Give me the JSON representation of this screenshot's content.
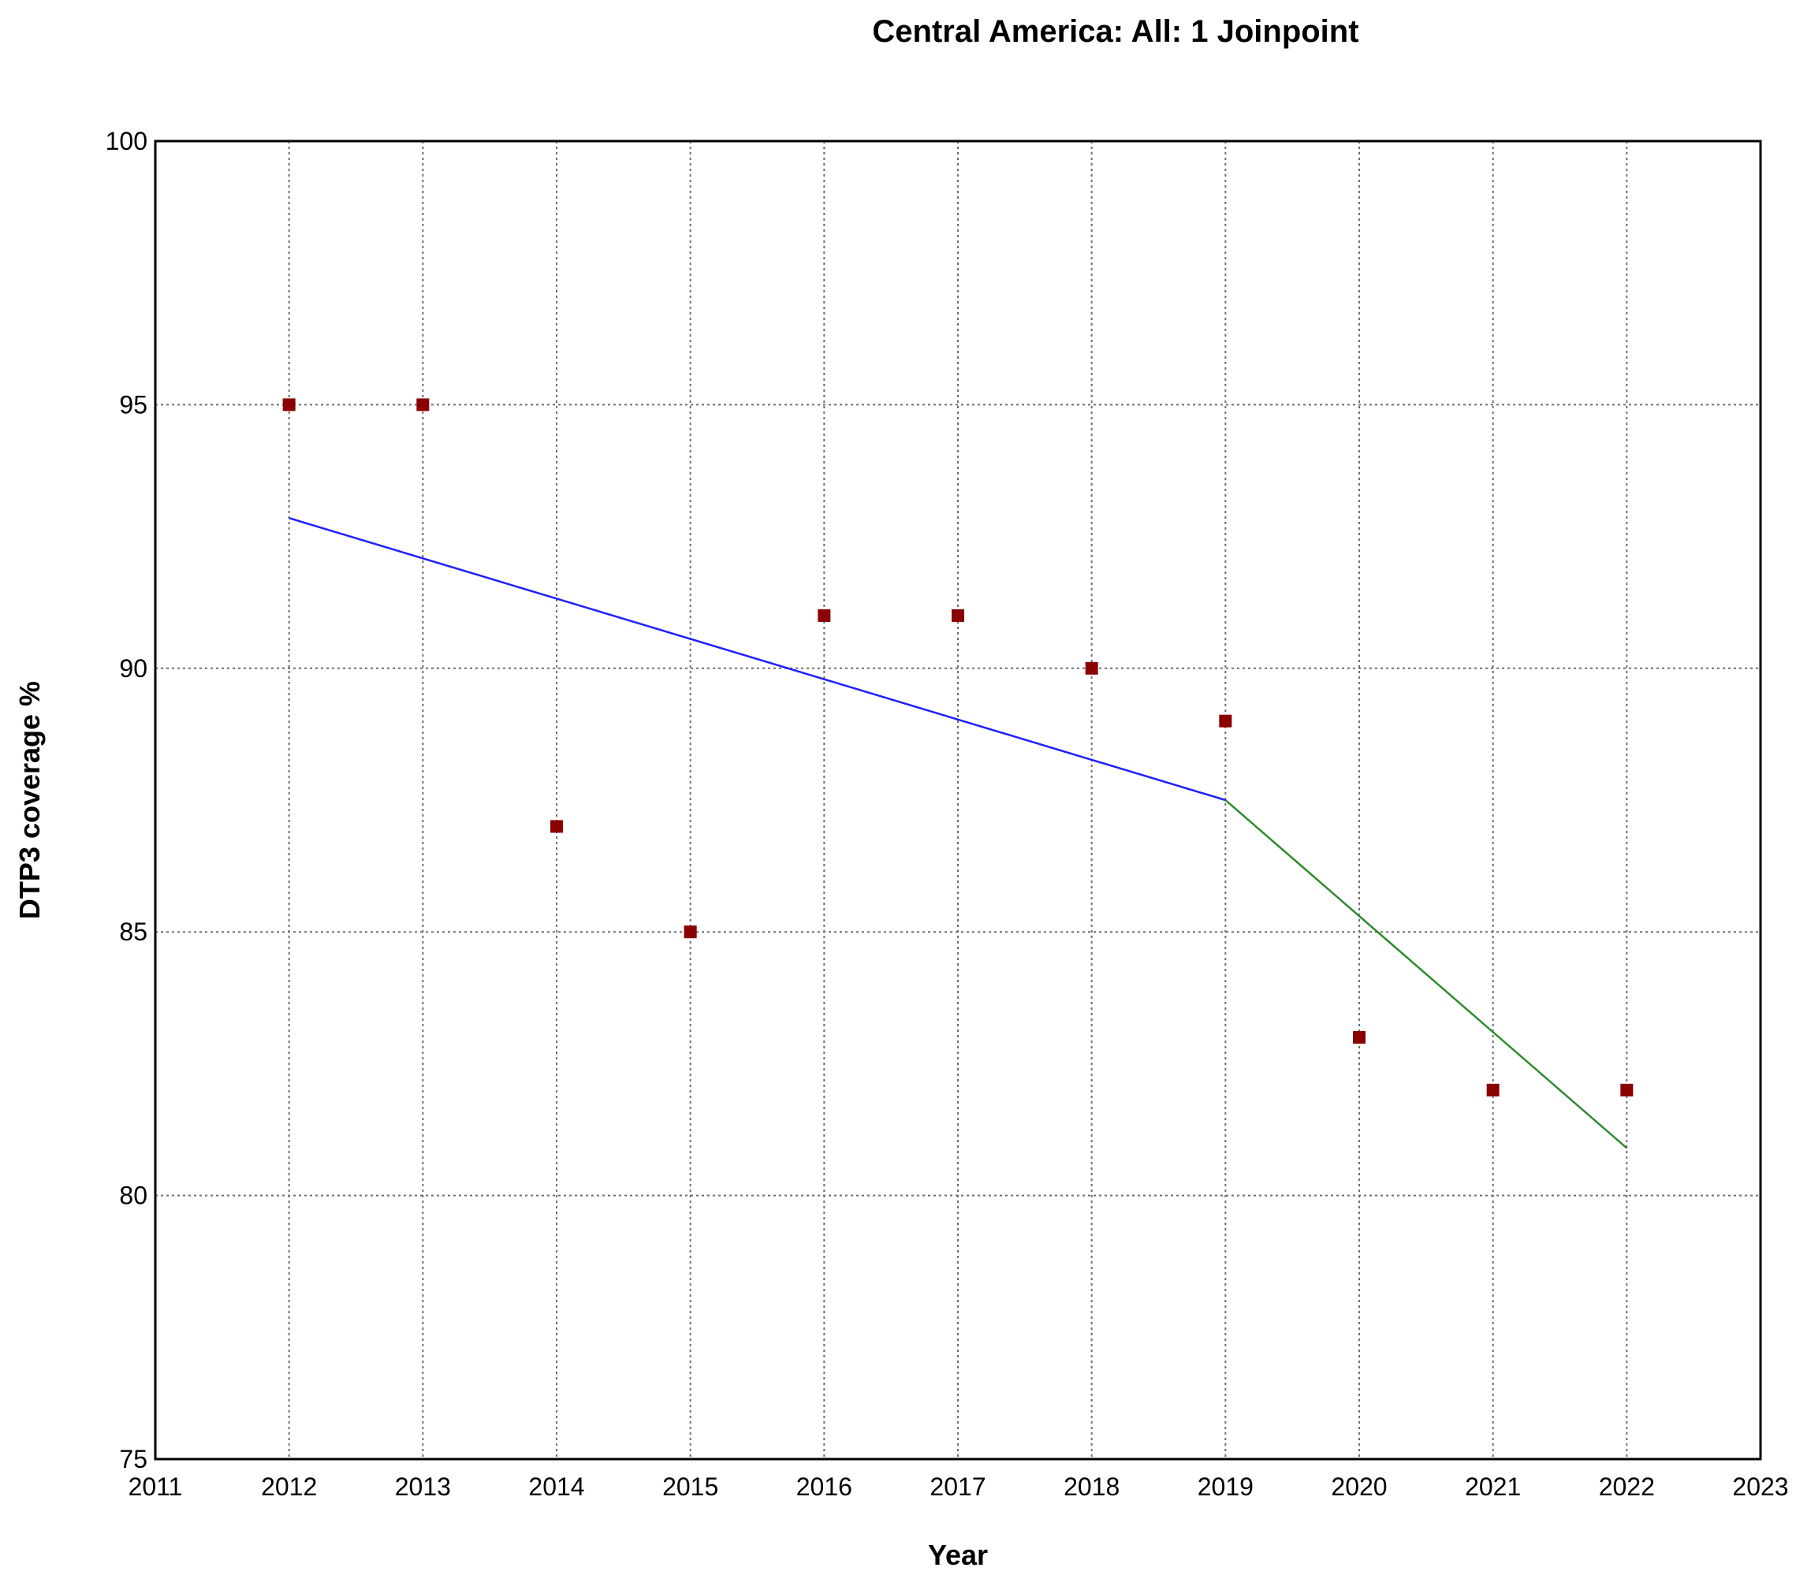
{
  "chart_data": {
    "type": "scatter",
    "title": "Central America: All: 1 Joinpoint",
    "xlabel": "Year",
    "ylabel": "DTP3 coverage %",
    "xlim": [
      2011,
      2023
    ],
    "ylim": [
      75,
      100
    ],
    "x_ticks": [
      2011,
      2012,
      2013,
      2014,
      2015,
      2016,
      2017,
      2018,
      2019,
      2020,
      2021,
      2022,
      2023
    ],
    "y_ticks": [
      75,
      80,
      85,
      90,
      95,
      100
    ],
    "grid": true,
    "observed": {
      "color": "#8b0000",
      "points": [
        {
          "x": 2012,
          "y": 95
        },
        {
          "x": 2013,
          "y": 95
        },
        {
          "x": 2014,
          "y": 87
        },
        {
          "x": 2015,
          "y": 85
        },
        {
          "x": 2016,
          "y": 91
        },
        {
          "x": 2017,
          "y": 91
        },
        {
          "x": 2018,
          "y": 90
        },
        {
          "x": 2019,
          "y": 89
        },
        {
          "x": 2020,
          "y": 83
        },
        {
          "x": 2021,
          "y": 82
        },
        {
          "x": 2022,
          "y": 82
        }
      ]
    },
    "segments": [
      {
        "color": "#2020ff",
        "points": [
          {
            "x": 2012,
            "y": 92.85
          },
          {
            "x": 2019,
            "y": 87.5
          }
        ]
      },
      {
        "color": "#2e8b2e",
        "points": [
          {
            "x": 2019,
            "y": 87.5
          },
          {
            "x": 2022,
            "y": 80.9
          }
        ]
      }
    ]
  }
}
